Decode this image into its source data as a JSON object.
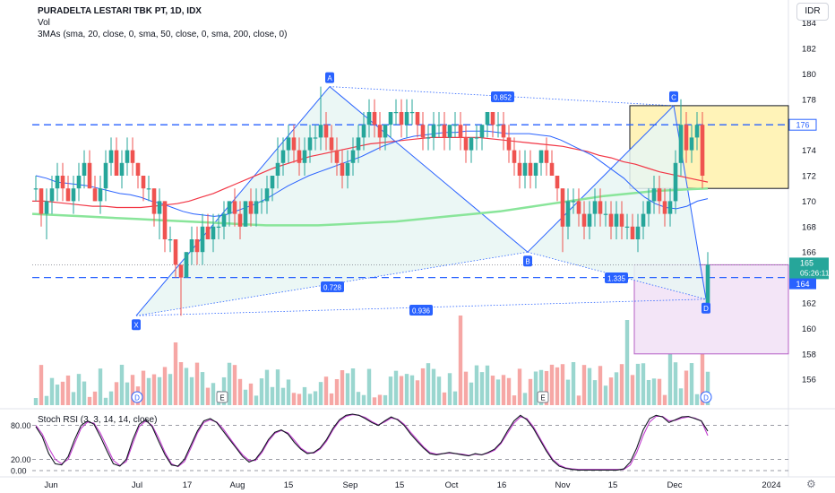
{
  "header": {
    "title": "PURADELTA LESTARI TBK PT, 1D, IDX",
    "vol_label": "Vol",
    "mas_label": "3MAs (sma, 20, close, 0, sma, 50, close, 0, sma, 200, close, 0)",
    "currency_button": "IDR"
  },
  "price_axis": {
    "ticks": [
      "184",
      "182",
      "180",
      "178",
      "176",
      "174",
      "172",
      "170",
      "168",
      "166",
      "162",
      "160",
      "158",
      "156"
    ],
    "tag_176": "176",
    "tag_last": "165",
    "tag_timer": "05:26:11",
    "tag_164": "164"
  },
  "rsi_panel": {
    "label": "Stoch RSI (3, 3, 14, 14, close)",
    "ticks": [
      "80.00",
      "20.00",
      "0.00"
    ]
  },
  "time_axis": {
    "labels": [
      "Jun",
      "Jul",
      "17",
      "Aug",
      "15",
      "Sep",
      "15",
      "Oct",
      "16",
      "Nov",
      "15",
      "Dec",
      "2024"
    ]
  },
  "pattern": {
    "points": [
      "X",
      "A",
      "B",
      "C",
      "D"
    ],
    "ratios": {
      "xb": "0.728",
      "ac": "0.852",
      "bd": "1.335",
      "xd": "0.936"
    }
  },
  "event_markers": [
    "D",
    "E",
    "E",
    "D"
  ],
  "colors": {
    "up": "#26a69a",
    "down": "#ef5350",
    "ma20": "#2962ff",
    "ma50": "#f23645",
    "ma200": "#89e59a",
    "pattern": "#2962ff",
    "rsi_k": "#131722",
    "rsi_d": "#c33fd1"
  },
  "chart_data": {
    "type": "candlestick",
    "symbol": "PURADELTA LESTARI TBK PT",
    "timeframe": "1D",
    "exchange": "IDX",
    "y_range": [
      154,
      185
    ],
    "last_price": 165,
    "levels": [
      176,
      164
    ],
    "candles": [
      [
        171,
        172,
        170,
        171
      ],
      [
        171,
        171,
        168,
        169
      ],
      [
        169,
        171,
        167,
        170
      ],
      [
        170,
        172,
        169,
        171
      ],
      [
        171,
        173,
        170,
        172
      ],
      [
        172,
        173,
        170,
        171
      ],
      [
        171,
        172,
        170,
        170
      ],
      [
        170,
        172,
        169,
        171
      ],
      [
        171,
        173,
        170,
        172
      ],
      [
        172,
        174,
        171,
        173
      ],
      [
        173,
        174,
        171,
        171
      ],
      [
        171,
        172,
        170,
        170
      ],
      [
        170,
        172,
        169,
        171
      ],
      [
        171,
        174,
        170,
        173
      ],
      [
        173,
        175,
        172,
        174
      ],
      [
        174,
        175,
        172,
        172
      ],
      [
        172,
        174,
        171,
        173
      ],
      [
        173,
        175,
        172,
        174
      ],
      [
        174,
        175,
        172,
        173
      ],
      [
        173,
        173,
        171,
        172
      ],
      [
        172,
        172,
        170,
        171
      ],
      [
        171,
        172,
        170,
        171
      ],
      [
        171,
        171,
        168,
        169
      ],
      [
        169,
        171,
        167,
        170
      ],
      [
        170,
        170,
        166,
        167
      ],
      [
        167,
        168,
        166,
        167
      ],
      [
        167,
        167,
        164,
        165
      ],
      [
        165,
        165,
        161,
        164
      ],
      [
        164,
        166,
        164,
        166
      ],
      [
        166,
        168,
        165,
        167
      ],
      [
        167,
        168,
        165,
        166
      ],
      [
        166,
        169,
        165,
        168
      ],
      [
        168,
        169,
        167,
        167
      ],
      [
        167,
        169,
        166,
        168
      ],
      [
        168,
        169,
        167,
        168
      ],
      [
        168,
        170,
        167,
        169
      ],
      [
        169,
        170,
        168,
        170
      ],
      [
        170,
        171,
        168,
        169
      ],
      [
        169,
        170,
        167,
        168
      ],
      [
        168,
        170,
        168,
        170
      ],
      [
        170,
        171,
        168,
        169
      ],
      [
        169,
        171,
        168,
        170
      ],
      [
        170,
        171,
        169,
        170
      ],
      [
        170,
        172,
        169,
        171
      ],
      [
        171,
        172,
        170,
        172
      ],
      [
        172,
        175,
        171,
        173
      ],
      [
        173,
        175,
        172,
        174
      ],
      [
        174,
        176,
        173,
        175
      ],
      [
        175,
        176,
        173,
        174
      ],
      [
        174,
        175,
        172,
        173
      ],
      [
        173,
        175,
        172,
        174
      ],
      [
        174,
        176,
        173,
        175
      ],
      [
        175,
        176,
        174,
        175
      ],
      [
        175,
        179,
        174,
        176
      ],
      [
        176,
        177,
        174,
        175
      ],
      [
        175,
        176,
        173,
        174
      ],
      [
        174,
        175,
        172,
        173
      ],
      [
        173,
        174,
        171,
        172
      ],
      [
        172,
        174,
        171,
        173
      ],
      [
        173,
        175,
        172,
        174
      ],
      [
        174,
        176,
        173,
        175
      ],
      [
        175,
        177,
        174,
        176
      ],
      [
        176,
        178,
        175,
        177
      ],
      [
        177,
        178,
        175,
        176
      ],
      [
        176,
        177,
        174,
        175
      ],
      [
        175,
        176,
        174,
        176
      ],
      [
        176,
        177,
        175,
        177
      ],
      [
        177,
        178,
        176,
        177
      ],
      [
        177,
        178,
        175,
        176
      ],
      [
        176,
        178,
        175,
        177
      ],
      [
        177,
        178,
        176,
        177
      ],
      [
        177,
        177,
        175,
        176
      ],
      [
        176,
        177,
        174,
        175
      ],
      [
        175,
        176,
        174,
        175
      ],
      [
        175,
        177,
        174,
        176
      ],
      [
        176,
        177,
        175,
        176
      ],
      [
        176,
        177,
        174,
        175
      ],
      [
        175,
        176,
        174,
        176
      ],
      [
        176,
        177,
        175,
        176
      ],
      [
        176,
        177,
        174,
        175
      ],
      [
        175,
        176,
        173,
        174
      ],
      [
        174,
        175,
        173,
        175
      ],
      [
        175,
        176,
        174,
        175
      ],
      [
        175,
        176,
        174,
        176
      ],
      [
        176,
        177,
        175,
        177
      ],
      [
        177,
        177,
        175,
        176
      ],
      [
        176,
        177,
        175,
        176
      ],
      [
        176,
        177,
        174,
        175
      ],
      [
        175,
        176,
        173,
        174
      ],
      [
        174,
        175,
        172,
        173
      ],
      [
        173,
        174,
        171,
        172
      ],
      [
        172,
        174,
        171,
        173
      ],
      [
        173,
        174,
        171,
        172
      ],
      [
        172,
        173,
        171,
        173
      ],
      [
        173,
        174,
        172,
        174
      ],
      [
        174,
        175,
        172,
        173
      ],
      [
        173,
        174,
        172,
        172
      ],
      [
        172,
        172,
        170,
        171
      ],
      [
        171,
        171,
        166,
        168
      ],
      [
        168,
        171,
        167,
        170
      ],
      [
        170,
        171,
        169,
        170
      ],
      [
        170,
        171,
        168,
        169
      ],
      [
        169,
        170,
        167,
        168
      ],
      [
        168,
        170,
        167,
        169
      ],
      [
        169,
        171,
        168,
        170
      ],
      [
        170,
        171,
        168,
        169
      ],
      [
        169,
        170,
        168,
        169
      ],
      [
        169,
        170,
        167,
        168
      ],
      [
        168,
        170,
        167,
        169
      ],
      [
        169,
        170,
        167,
        168
      ],
      [
        168,
        169,
        167,
        168
      ],
      [
        168,
        169,
        167,
        167
      ],
      [
        167,
        169,
        166,
        168
      ],
      [
        168,
        170,
        167,
        169
      ],
      [
        169,
        171,
        168,
        170
      ],
      [
        170,
        172,
        169,
        171
      ],
      [
        171,
        172,
        169,
        170
      ],
      [
        170,
        171,
        168,
        169
      ],
      [
        169,
        171,
        168,
        170
      ],
      [
        170,
        174,
        169,
        173
      ],
      [
        173,
        178,
        172,
        176
      ],
      [
        176,
        177,
        173,
        174
      ],
      [
        174,
        176,
        173,
        175
      ],
      [
        175,
        177,
        174,
        176
      ],
      [
        176,
        177,
        171,
        172
      ],
      [
        162,
        166,
        162,
        165
      ]
    ],
    "ma20": [
      172,
      171.8,
      171.5,
      171.4,
      171.3,
      171.2,
      171,
      170.8,
      170.6,
      170.5,
      170.3,
      170,
      169.8,
      169.5,
      169.2,
      169,
      168.9,
      168.8,
      168.9,
      169.2,
      169.5,
      169.8,
      170.2,
      170.7,
      171.2,
      171.6,
      172,
      172.3,
      172.6,
      172.9,
      173.2,
      173.5,
      173.9,
      174.3,
      174.6,
      174.9,
      175.1,
      175.2,
      175.3,
      175.4,
      175.4,
      175.5,
      175.5,
      175.5,
      175.4,
      175.3,
      175.3,
      175.3,
      175.2,
      175.1,
      174.8,
      174.4,
      174,
      173.6,
      173,
      172.4,
      171.8,
      171,
      170.3,
      169.8,
      169.5,
      169.4,
      169.6,
      170,
      170.2
    ],
    "ma50": [
      170,
      170,
      169.9,
      169.8,
      169.7,
      169.6,
      169.6,
      169.5,
      169.5,
      169.5,
      169.6,
      169.7,
      169.8,
      170,
      170.3,
      170.6,
      171,
      171.4,
      171.8,
      172.2,
      172.6,
      172.9,
      173.2,
      173.5,
      173.7,
      173.9,
      174.1,
      174.3,
      174.5,
      174.6,
      174.7,
      174.8,
      174.9,
      175,
      175,
      175,
      175,
      175,
      174.9,
      174.8,
      174.7,
      174.6,
      174.5,
      174.4,
      174.3,
      174.1,
      173.9,
      173.6,
      173.4,
      173.1,
      172.9,
      172.6,
      172.3,
      172.1,
      171.9,
      171.7,
      171.5
    ],
    "ma200": [
      169,
      168.9,
      168.8,
      168.7,
      168.6,
      168.5,
      168.4,
      168.3,
      168.2,
      168.1,
      168.1,
      168.1,
      168.2,
      168.3,
      168.4,
      168.6,
      168.8,
      169,
      169.2,
      169.5,
      169.8,
      170.1,
      170.4,
      170.6,
      170.8,
      170.9,
      171
    ],
    "harmonic_xabcd": {
      "X": 161,
      "A": 179,
      "B": 166,
      "C": 177.5,
      "D": 162.3,
      "ratios": {
        "XB": 0.728,
        "AC": 0.852,
        "BD": 1.335,
        "XD": 0.936
      }
    },
    "target_box": [
      171,
      177.5
    ],
    "stop_box": [
      158,
      165
    ],
    "stoch_rsi": {
      "range": [
        0,
        100
      ],
      "bands": [
        80,
        20,
        0
      ],
      "k": [
        78,
        60,
        30,
        12,
        10,
        25,
        55,
        80,
        88,
        82,
        60,
        35,
        12,
        8,
        20,
        55,
        82,
        90,
        78,
        52,
        28,
        10,
        8,
        20,
        45,
        70,
        88,
        92,
        85,
        70,
        55,
        40,
        25,
        15,
        20,
        35,
        55,
        68,
        72,
        65,
        50,
        38,
        30,
        32,
        40,
        55,
        75,
        90,
        98,
        100,
        98,
        92,
        85,
        80,
        88,
        95,
        90,
        80,
        65,
        52,
        40,
        30,
        28,
        30,
        32,
        30,
        28,
        26,
        30,
        28,
        32,
        38,
        50,
        70,
        88,
        98,
        90,
        75,
        55,
        35,
        18,
        8,
        4,
        2,
        1,
        1,
        1,
        1,
        1,
        1,
        1,
        3,
        15,
        40,
        72,
        92,
        98,
        95,
        85,
        90,
        95,
        96,
        92,
        88,
        70
      ],
      "d": [
        80,
        65,
        40,
        20,
        12,
        20,
        48,
        75,
        86,
        84,
        66,
        42,
        18,
        9,
        16,
        48,
        78,
        88,
        80,
        58,
        32,
        12,
        7,
        16,
        40,
        66,
        85,
        90,
        86,
        74,
        58,
        42,
        28,
        18,
        18,
        32,
        52,
        66,
        71,
        67,
        54,
        40,
        32,
        31,
        38,
        52,
        72,
        88,
        96,
        99,
        98,
        94,
        87,
        81,
        86,
        93,
        91,
        82,
        68,
        55,
        42,
        32,
        29,
        30,
        31,
        30,
        29,
        27,
        29,
        28,
        31,
        36,
        48,
        66,
        84,
        95,
        92,
        78,
        58,
        38,
        20,
        10,
        5,
        3,
        2,
        2,
        2,
        2,
        2,
        2,
        2,
        2,
        10,
        32,
        62,
        86,
        96,
        96,
        88,
        89,
        93,
        95,
        93,
        88,
        62
      ]
    }
  }
}
